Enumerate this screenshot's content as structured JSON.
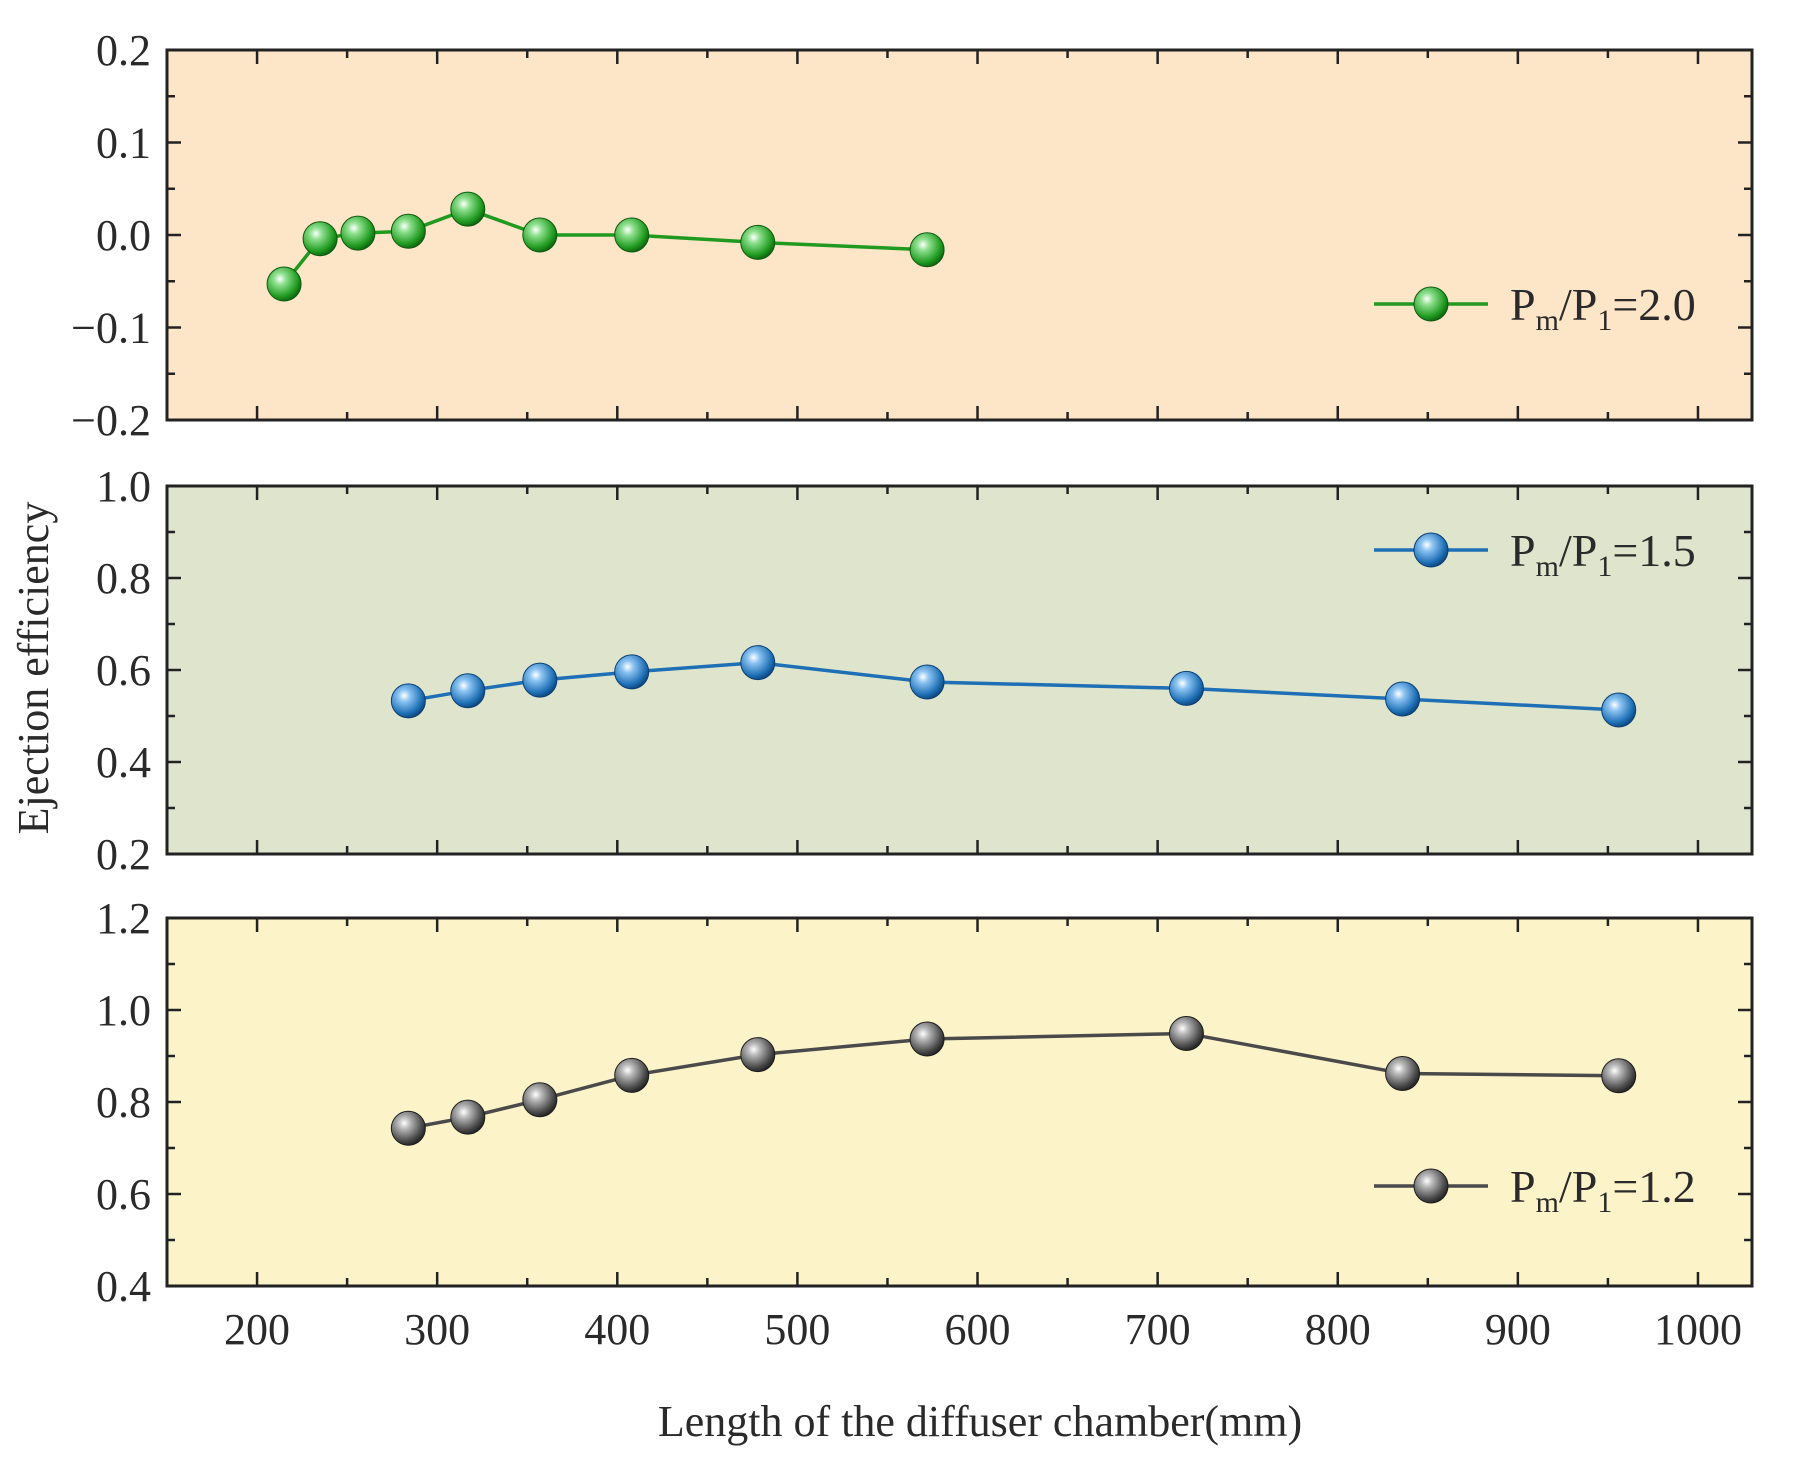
{
  "chart_data": {
    "type": "line",
    "ylabel": "Ejection efficiency",
    "xlabel": "Length of the diffuser chamber(mm)",
    "xlim": [
      150,
      1030
    ],
    "x_ticks": [
      200,
      300,
      400,
      500,
      600,
      700,
      800,
      900,
      1000
    ],
    "x_tick_labels": [
      "200",
      "300",
      "400",
      "500",
      "600",
      "700",
      "800",
      "900",
      "1000"
    ],
    "panels": [
      {
        "id": "pm-p1-2-0",
        "background": "#fde5c8",
        "ylim": [
          -0.2,
          0.2
        ],
        "y_ticks": [
          -0.2,
          -0.1,
          0.0,
          0.1,
          0.2
        ],
        "y_tick_labels": [
          "−0.2",
          "−0.1",
          "0.0",
          "0.1",
          "0.2"
        ],
        "legend_position": "center-right",
        "series": {
          "name": "Pm/P1=2.0",
          "label_main": "P",
          "label_sub1": "m",
          "label_mid": "/P",
          "label_sub2": "1",
          "label_end": "=2.0",
          "color": "#1f9a1f",
          "marker_dark": "#0d5a0d",
          "marker_light": "#8fe08f",
          "x": [
            215,
            235,
            256,
            284,
            317,
            357,
            408,
            478,
            572
          ],
          "y": [
            -0.053,
            -0.004,
            0.002,
            0.004,
            0.028,
            0.0,
            0.0,
            -0.008,
            -0.016
          ]
        }
      },
      {
        "id": "pm-p1-1-5",
        "background": "#dfe5cd",
        "ylim": [
          0.2,
          1.0
        ],
        "y_ticks": [
          0.2,
          0.4,
          0.6,
          0.8,
          1.0
        ],
        "y_tick_labels": [
          "0.2",
          "0.4",
          "0.6",
          "0.8",
          "1.0"
        ],
        "legend_position": "top-right",
        "series": {
          "name": "Pm/P1=1.5",
          "label_main": "P",
          "label_sub1": "m",
          "label_mid": "/P",
          "label_sub2": "1",
          "label_end": "=1.5",
          "color": "#1e6fb5",
          "marker_dark": "#0b3f73",
          "marker_light": "#8cc4f2",
          "x": [
            284,
            317,
            357,
            408,
            478,
            572,
            716,
            836,
            956
          ],
          "y": [
            0.533,
            0.555,
            0.578,
            0.596,
            0.616,
            0.574,
            0.56,
            0.537,
            0.513
          ]
        }
      },
      {
        "id": "pm-p1-1-2",
        "background": "#fcf3c9",
        "ylim": [
          0.4,
          1.2
        ],
        "y_ticks": [
          0.4,
          0.6,
          0.8,
          1.0,
          1.2
        ],
        "y_tick_labels": [
          "0.4",
          "0.6",
          "0.8",
          "1.0",
          "1.2"
        ],
        "legend_position": "bottom-right",
        "series": {
          "name": "Pm/P1=1.2",
          "label_main": "P",
          "label_sub1": "m",
          "label_mid": "/P",
          "label_sub2": "1",
          "label_end": "=1.2",
          "color": "#4a4a4a",
          "marker_dark": "#1c1c1c",
          "marker_light": "#b8b8b8",
          "x": [
            284,
            317,
            357,
            408,
            478,
            572,
            716,
            836,
            956
          ],
          "y": [
            0.743,
            0.767,
            0.805,
            0.858,
            0.903,
            0.937,
            0.949,
            0.862,
            0.857
          ]
        }
      }
    ]
  }
}
